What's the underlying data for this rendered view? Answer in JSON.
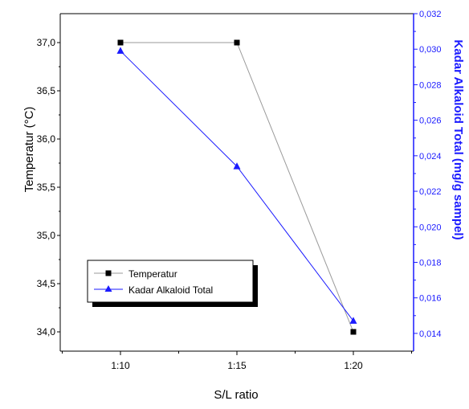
{
  "chart_data": {
    "type": "line",
    "title": "",
    "xlabel": "S/L ratio",
    "ylabel": "Temperatur (°C)",
    "y2label": "Kadar Alkaloid Total (mg/g sampel)",
    "categories": [
      "1:10",
      "1:15",
      "1:20"
    ],
    "ylim": [
      33.8,
      37.3
    ],
    "y2lim": [
      0.013,
      0.032
    ],
    "yticks": [
      "34,0",
      "34,5",
      "35,0",
      "35,5",
      "36,0",
      "36,5",
      "37,0"
    ],
    "y2ticks": [
      "0,014",
      "0,016",
      "0,018",
      "0,020",
      "0,022",
      "0,024",
      "0,026",
      "0,028",
      "0,030",
      "0,032"
    ],
    "series": [
      {
        "name": "Temperatur",
        "axis": "left",
        "marker": "square",
        "color": "#000000",
        "line_color": "#9a9a9a",
        "values": [
          37.0,
          37.0,
          34.0
        ]
      },
      {
        "name": "Kadar Alkaloid Total",
        "axis": "right",
        "marker": "triangle",
        "color": "#1a1aff",
        "line_color": "#1a1aff",
        "values": [
          0.0299,
          0.0234,
          0.0147
        ]
      }
    ],
    "legend_position": "bottom-left",
    "grid": false
  }
}
